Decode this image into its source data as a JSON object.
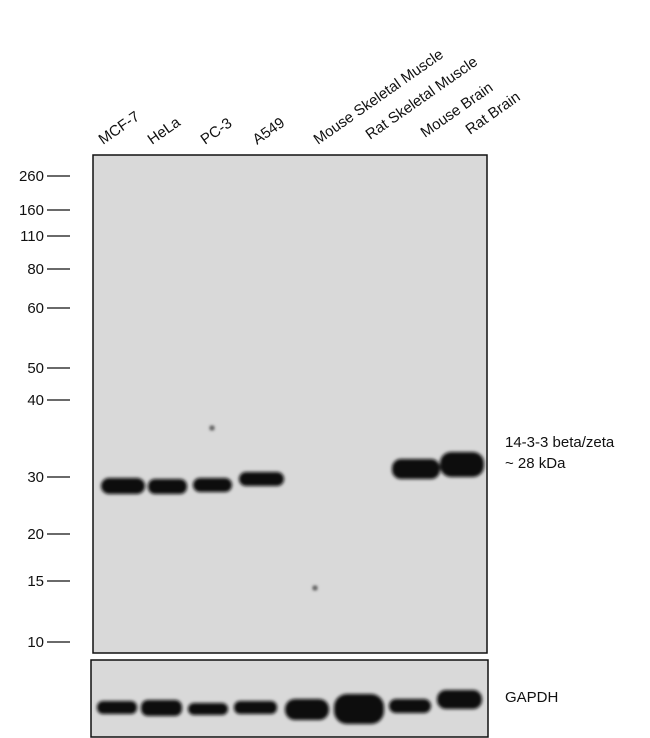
{
  "lanes": [
    "MCF-7",
    "HeLa",
    "PC-3",
    "A549",
    "Mouse Skeletal Muscle",
    "Rat Skeletal Muscle",
    "Mouse Brain",
    "Rat Brain"
  ],
  "markers": [
    260,
    160,
    110,
    80,
    60,
    50,
    40,
    30,
    20,
    15,
    10
  ],
  "target": {
    "name": "14-3-3 beta/zeta",
    "size": "~ 28 kDa"
  },
  "loading_control": "GAPDH"
}
